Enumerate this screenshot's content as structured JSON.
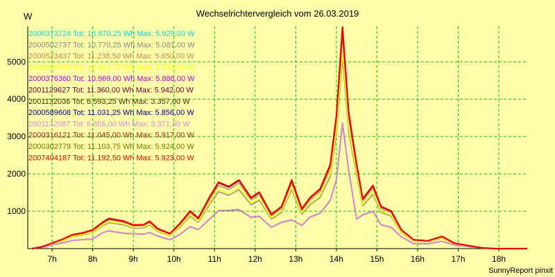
{
  "chart_data": {
    "type": "line",
    "title": "Wechselrichtervergleich vom 26.03.2019",
    "ylabel": "W",
    "xlabel": "",
    "footer": "SunnyReport pinxit",
    "x_tick_labels": [
      "7h",
      "8h",
      "9h",
      "10h",
      "11h",
      "12h",
      "13h",
      "14h",
      "15h",
      "16h",
      "17h",
      "18h"
    ],
    "x_tick_values": [
      7,
      8,
      9,
      10,
      11,
      12,
      13,
      14,
      15,
      16,
      17,
      18
    ],
    "y_tick_labels": [
      "1000",
      "2000",
      "3000",
      "4000",
      "5000"
    ],
    "y_tick_values": [
      1000,
      2000,
      3000,
      4000,
      5000
    ],
    "xlim": [
      6.4,
      18.7
    ],
    "ylim": [
      0,
      5950
    ],
    "grid": true,
    "legend_position": "top-left",
    "x": [
      6.5,
      6.75,
      7.0,
      7.25,
      7.5,
      7.75,
      8.0,
      8.25,
      8.4,
      8.75,
      9.0,
      9.25,
      9.4,
      9.6,
      9.9,
      10.15,
      10.4,
      10.6,
      10.9,
      11.1,
      11.35,
      11.6,
      11.9,
      12.1,
      12.4,
      12.65,
      12.9,
      13.15,
      13.35,
      13.6,
      13.85,
      14.0,
      14.15,
      14.3,
      14.5,
      14.65,
      14.9,
      15.1,
      15.35,
      15.6,
      15.9,
      16.25,
      16.6,
      16.9,
      17.3,
      17.6,
      17.9,
      18.2,
      18.7
    ],
    "series_high_shape": [
      0,
      0.008,
      0.025,
      0.042,
      0.063,
      0.071,
      0.085,
      0.12,
      0.136,
      0.125,
      0.107,
      0.108,
      0.124,
      0.09,
      0.068,
      0.114,
      0.17,
      0.138,
      0.24,
      0.3,
      0.28,
      0.31,
      0.23,
      0.255,
      0.155,
      0.19,
      0.31,
      0.18,
      0.23,
      0.27,
      0.38,
      0.6,
      1.0,
      0.62,
      0.38,
      0.225,
      0.285,
      0.19,
      0.17,
      0.085,
      0.04,
      0.035,
      0.055,
      0.025,
      0.012,
      0.003,
      0,
      0,
      0
    ],
    "series_low_shape": [
      0,
      0.01,
      0.03,
      0.045,
      0.065,
      0.072,
      0.077,
      0.128,
      0.142,
      0.123,
      0.118,
      0.115,
      0.128,
      0.1,
      0.07,
      0.113,
      0.175,
      0.152,
      0.242,
      0.303,
      0.305,
      0.311,
      0.25,
      0.258,
      0.17,
      0.21,
      0.228,
      0.185,
      0.251,
      0.282,
      0.385,
      0.55,
      1.0,
      0.63,
      0.235,
      0.27,
      0.298,
      0.19,
      0.17,
      0.094,
      0.04,
      0.038,
      0.058,
      0.03,
      0.015,
      0.005,
      0,
      0,
      0
    ],
    "series": [
      {
        "name": "2000373724 Tot: 10.870,25 Wh Max: 5.929,00 W",
        "color": "#00dddd",
        "max": 5929,
        "shape": "high"
      },
      {
        "name": "2000502737 Tot: 10.770,25 Wh Max: 5.081,00 W",
        "color": "#888888",
        "max": 5081,
        "shape": "high"
      },
      {
        "name": "2000523437 Tot: 11.238,50 Wh Max: 5.650,00 W",
        "color": "#cc8844",
        "max": 5650,
        "shape": "high"
      },
      {
        "name": "2000523639 Tot: 10.691,75 Wh Max: 5.246,00 W",
        "color": "#ffff00",
        "max": 5246,
        "shape": "high"
      },
      {
        "name": "2000376360 Tot: 10.969,00 Wh Max: 5.888,00 W",
        "color": "#cc00cc",
        "max": 5888,
        "shape": "high"
      },
      {
        "name": "2001129627 Tot: 11.360,00 Wh Max: 5.942,00 W",
        "color": "#660033",
        "max": 5942,
        "shape": "high"
      },
      {
        "name": "2001132036 Tot: 6.593,25 Wh Max: 3.357,00 W",
        "color": "#443300",
        "max": 3357,
        "shape": "low"
      },
      {
        "name": "2000589608 Tot: 11.031,25 Wh Max: 5.856,00 W",
        "color": "#000088",
        "max": 5856,
        "shape": "high"
      },
      {
        "name": "2001132087 Tot: 6.656,00 Wh Max: 3.371,00 W",
        "color": "#dd88dd",
        "max": 3371,
        "shape": "low"
      },
      {
        "name": "2000316121 Tot: 11.045,00 Wh Max: 5.917,00 W",
        "color": "#aa2222",
        "max": 5917,
        "shape": "high"
      },
      {
        "name": "2000302779 Tot: 11.103,75 Wh Max: 5.924,00 W",
        "color": "#777700",
        "max": 5924,
        "shape": "high"
      },
      {
        "name": "2007404187 Tot: 11.192,50 Wh Max: 5.923,00 W",
        "color": "#ee0000",
        "max": 5923,
        "shape": "high"
      }
    ],
    "colors": {
      "background": "#fdfdaa",
      "grid": "#00cc00",
      "axis": "#000000"
    }
  }
}
